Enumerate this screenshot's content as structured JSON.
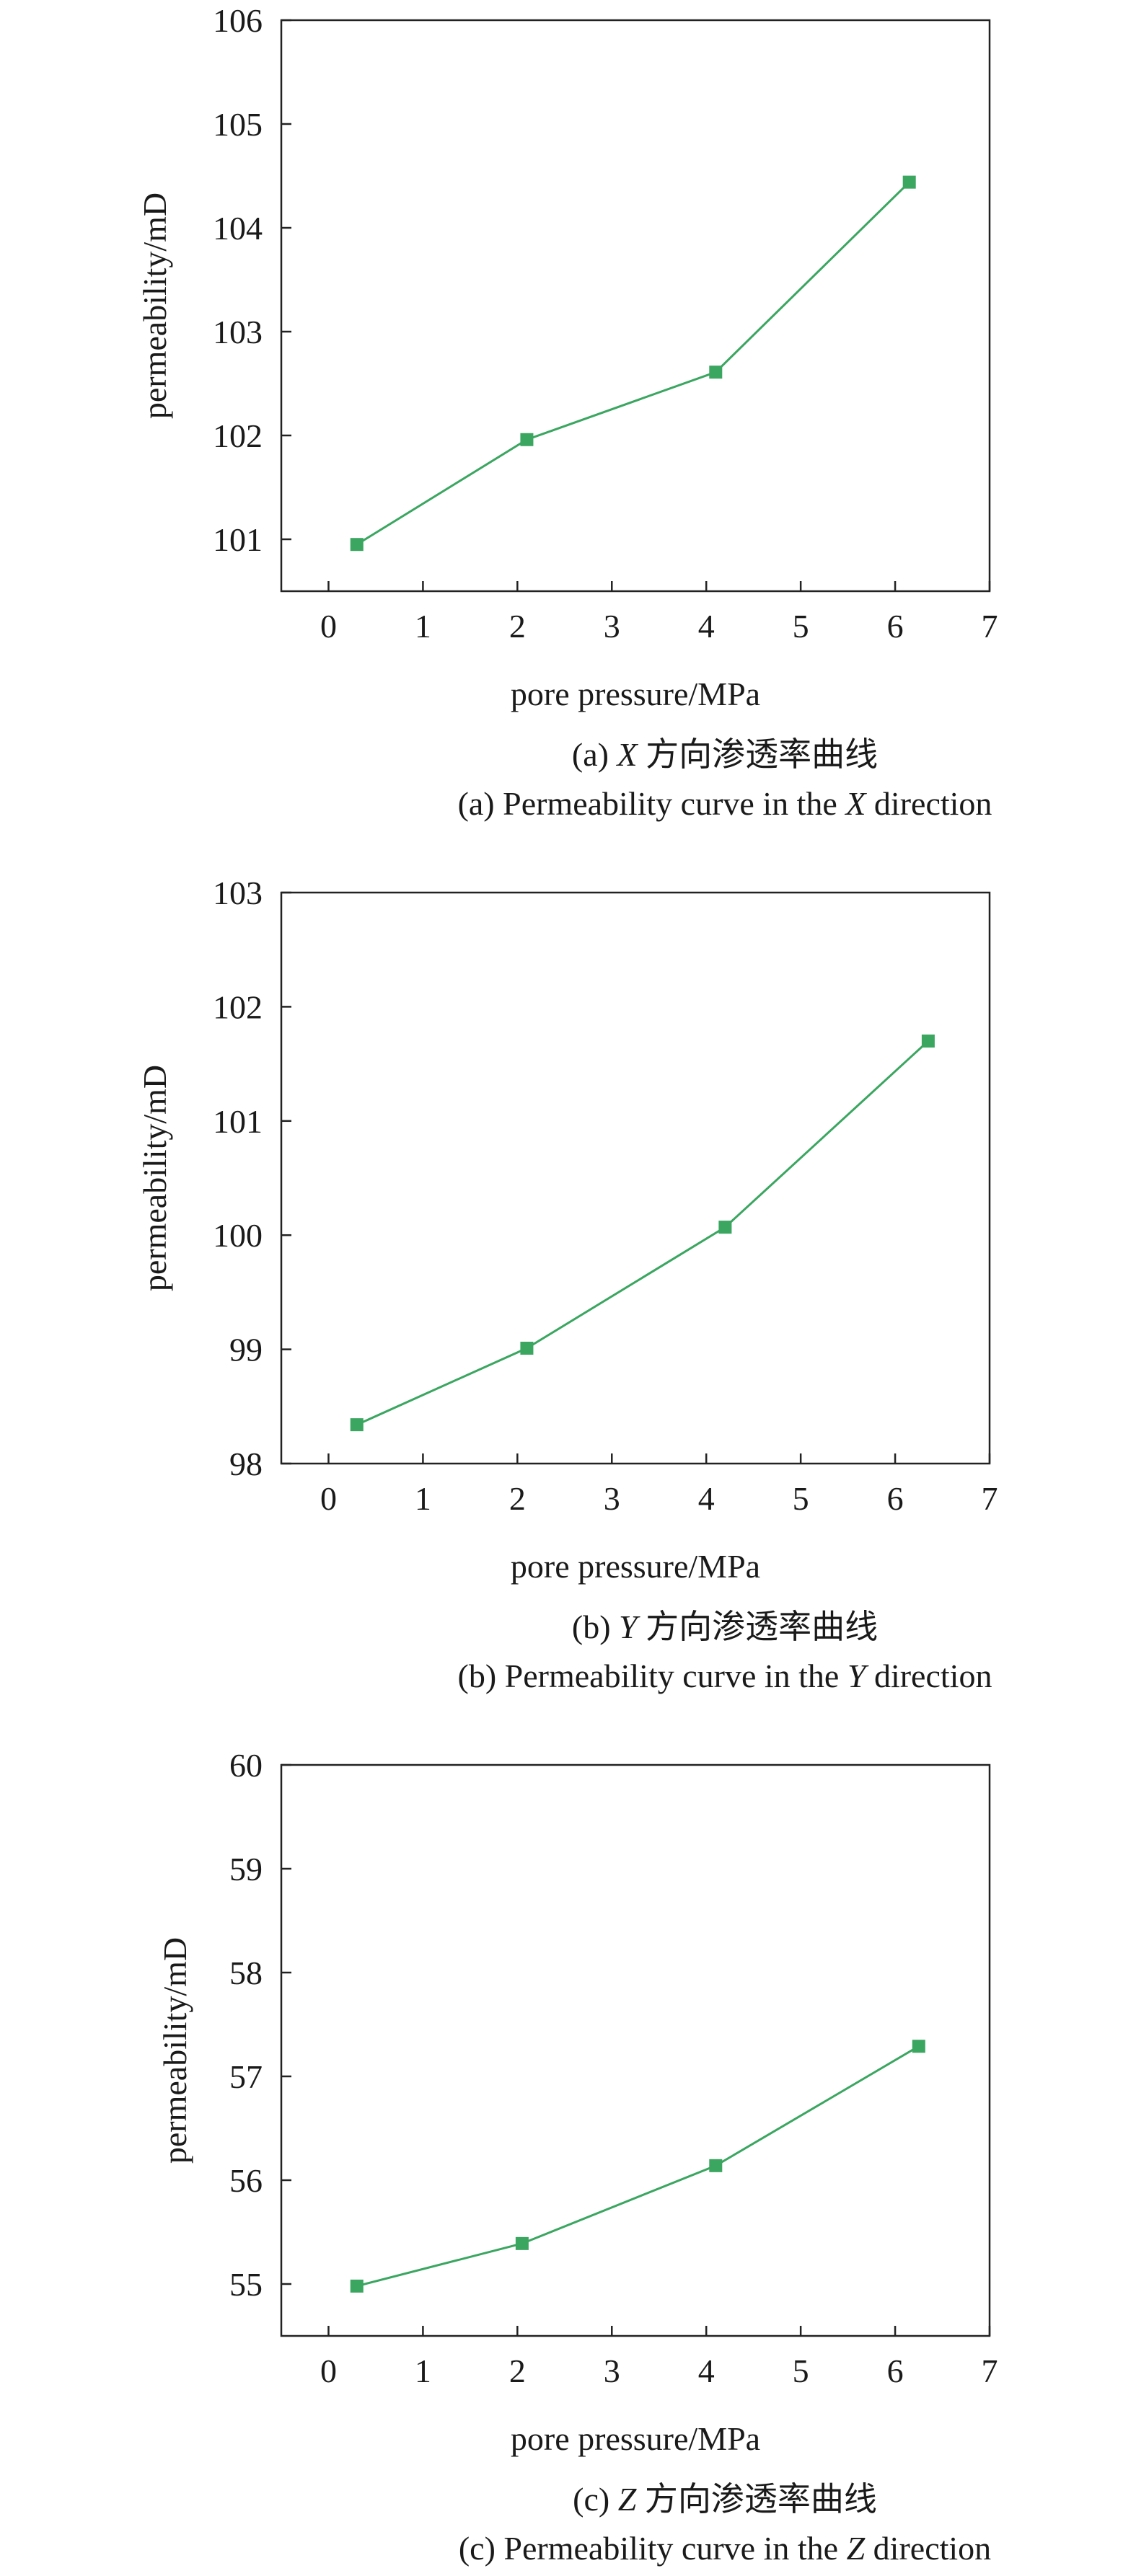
{
  "chart_data": [
    {
      "type": "line",
      "xlabel": "pore pressure/MPa",
      "ylabel": "permeability/mD",
      "xlim": [
        -0.5,
        7
      ],
      "ylim": [
        100.5,
        106
      ],
      "xticks": [
        0,
        1,
        2,
        3,
        4,
        5,
        6,
        7
      ],
      "yticks": [
        101,
        102,
        103,
        104,
        105,
        106
      ],
      "grid": false,
      "marker": "square",
      "line_color": "#3aa660",
      "series": [
        {
          "x": [
            0.3,
            2.1,
            4.1,
            6.15
          ],
          "y": [
            100.95,
            101.96,
            102.61,
            104.44
          ]
        }
      ],
      "caption_zh": {
        "prefix": "(a) ",
        "axis": "X",
        "rest": " 方向渗透率曲线"
      },
      "caption_en": {
        "prefix": "(a) Permeability curve in the ",
        "axis": "X",
        "rest": " direction"
      }
    },
    {
      "type": "line",
      "xlabel": "pore pressure/MPa",
      "ylabel": "permeability/mD",
      "xlim": [
        -0.5,
        7
      ],
      "ylim": [
        98,
        103
      ],
      "xticks": [
        0,
        1,
        2,
        3,
        4,
        5,
        6,
        7
      ],
      "yticks": [
        98,
        99,
        100,
        101,
        102,
        103
      ],
      "grid": false,
      "marker": "square",
      "line_color": "#3aa660",
      "series": [
        {
          "x": [
            0.3,
            2.1,
            4.2,
            6.35
          ],
          "y": [
            98.34,
            99.01,
            100.07,
            101.7
          ]
        }
      ],
      "caption_zh": {
        "prefix": "(b) ",
        "axis": "Y",
        "rest": " 方向渗透率曲线"
      },
      "caption_en": {
        "prefix": "(b) Permeability curve in the ",
        "axis": "Y",
        "rest": " direction"
      }
    },
    {
      "type": "line",
      "xlabel": "pore pressure/MPa",
      "ylabel": "permeability/mD",
      "xlim": [
        -0.5,
        7
      ],
      "ylim": [
        54.5,
        60
      ],
      "xticks": [
        0,
        1,
        2,
        3,
        4,
        5,
        6,
        7
      ],
      "yticks": [
        55,
        56,
        57,
        58,
        59,
        60
      ],
      "grid": false,
      "marker": "square",
      "line_color": "#3aa660",
      "series": [
        {
          "x": [
            0.3,
            2.05,
            4.1,
            6.25
          ],
          "y": [
            54.98,
            55.39,
            56.14,
            57.29
          ]
        }
      ],
      "caption_zh": {
        "prefix": "(c) ",
        "axis": "Z",
        "rest": " 方向渗透率曲线"
      },
      "caption_en": {
        "prefix": "(c) Permeability curve in the ",
        "axis": "Z",
        "rest": " direction"
      }
    }
  ]
}
